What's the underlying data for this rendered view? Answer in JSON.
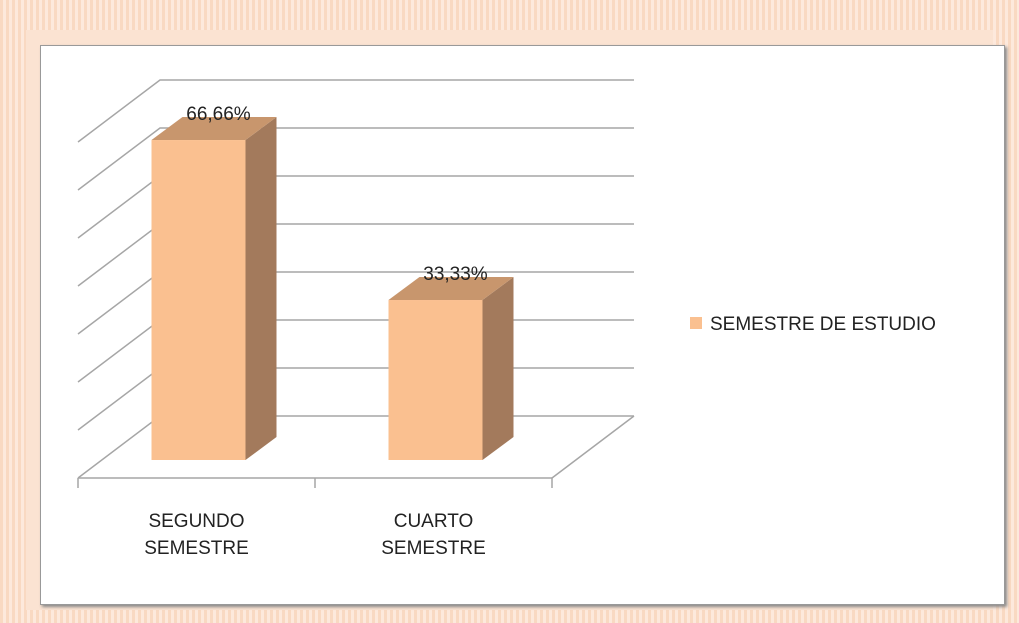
{
  "chart_data": {
    "type": "bar3d",
    "categories": [
      "SEGUNDO SEMESTRE",
      "CUARTO SEMESTRE"
    ],
    "series": [
      {
        "name": "SEMESTRE DE ESTUDIO",
        "color": "#fac090",
        "values": [
          66.66,
          33.33
        ],
        "value_labels": [
          "66,66%",
          "33,33%"
        ]
      }
    ],
    "ylim": [
      0,
      70
    ],
    "yticks": [
      0,
      10,
      20,
      30,
      40,
      50,
      60,
      70
    ],
    "grid": true,
    "legend": "right"
  }
}
